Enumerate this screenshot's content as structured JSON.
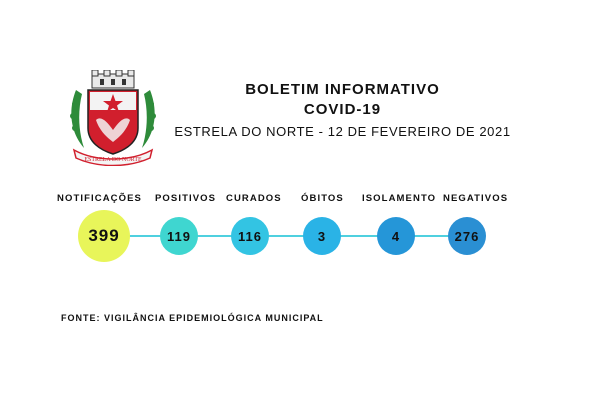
{
  "header": {
    "title_line1": "BOLETIM INFORMATIVO",
    "title_line2": "COVID-19",
    "subtitle": "ESTRELA DO NORTE - 12 DE FEVEREIRO DE 2021"
  },
  "crest": {
    "banner_text": "ESTRELA DO NORTE",
    "icon": "coat-of-arms-icon"
  },
  "stats": [
    {
      "label": "NOTIFICAÇÕES",
      "value": "399",
      "color": "#e8f55a"
    },
    {
      "label": "POSITIVOS",
      "value": "119",
      "color": "#3fd6d0"
    },
    {
      "label": "CURADOS",
      "value": "116",
      "color": "#33c4e3"
    },
    {
      "label": "ÓBITOS",
      "value": "3",
      "color": "#2ab3e6"
    },
    {
      "label": "ISOLAMENTO",
      "value": "4",
      "color": "#2596d8"
    },
    {
      "label": "NEGATIVOS",
      "value": "276",
      "color": "#2a8fd3"
    }
  ],
  "source": "FONTE: VIGILÂNCIA EPIDEMIOLÓGICA MUNICIPAL",
  "colors": {
    "connector": "#4fd0df",
    "crest_red": "#d11f2d",
    "crest_green": "#2e8b3a"
  }
}
